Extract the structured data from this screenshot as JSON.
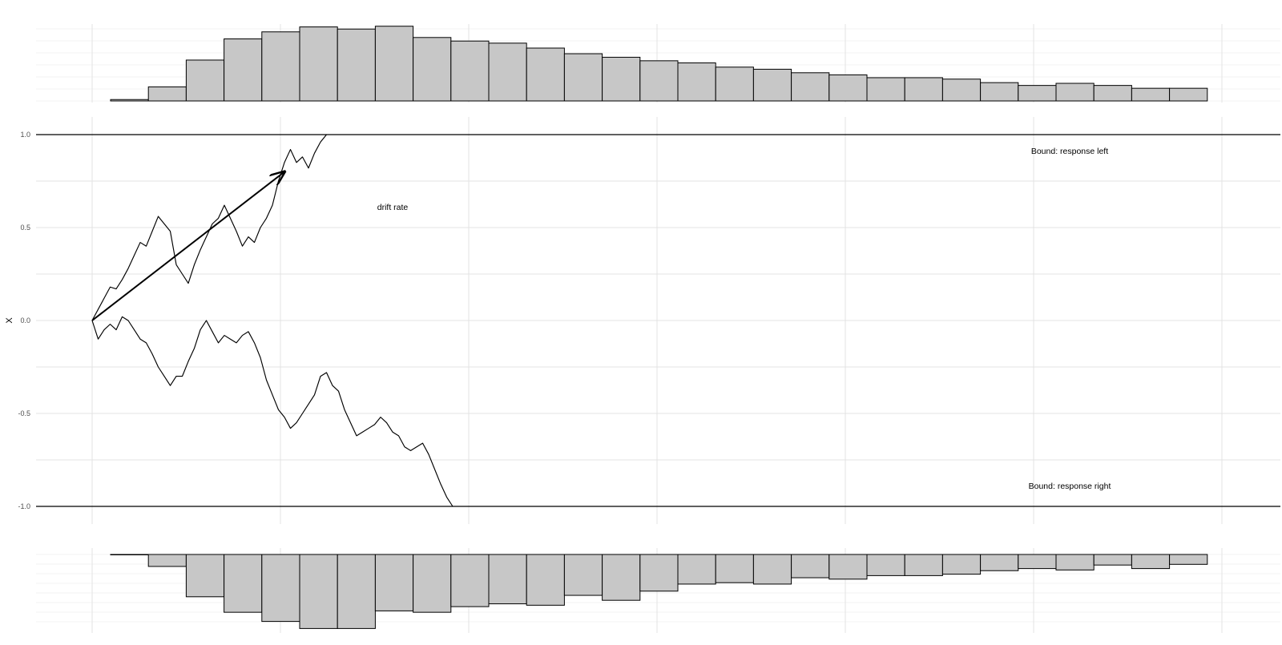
{
  "chart_data": {
    "type": "line",
    "ylabel": "X",
    "ylim": [
      -1.0,
      1.0
    ],
    "yticks": [
      "1.0",
      "0.5",
      "0.0",
      "-0.5",
      "-1.0"
    ],
    "yticks_values": [
      1.0,
      0.5,
      0.0,
      -0.5,
      -1.0
    ],
    "xaxis_labels_shown": false,
    "grid": true,
    "bounds": [
      {
        "value": 1.0,
        "label": "Bound: response left"
      },
      {
        "value": -1.0,
        "label": "Bound: response right"
      }
    ],
    "drift_rate": {
      "label": "drift rate",
      "from": [
        0,
        0.0
      ],
      "to": [
        1.6,
        0.8
      ]
    },
    "series": [
      {
        "kind": "path-upper",
        "points": [
          [
            0,
            0.0
          ],
          [
            0.05,
            0.06
          ],
          [
            0.1,
            0.12
          ],
          [
            0.15,
            0.18
          ],
          [
            0.2,
            0.17
          ],
          [
            0.25,
            0.22
          ],
          [
            0.3,
            0.28
          ],
          [
            0.35,
            0.35
          ],
          [
            0.4,
            0.42
          ],
          [
            0.45,
            0.4
          ],
          [
            0.5,
            0.48
          ],
          [
            0.55,
            0.56
          ],
          [
            0.6,
            0.52
          ],
          [
            0.65,
            0.48
          ],
          [
            0.7,
            0.3
          ],
          [
            0.75,
            0.25
          ],
          [
            0.8,
            0.2
          ],
          [
            0.85,
            0.3
          ],
          [
            0.9,
            0.38
          ],
          [
            0.95,
            0.45
          ],
          [
            1.0,
            0.52
          ],
          [
            1.05,
            0.55
          ],
          [
            1.1,
            0.62
          ],
          [
            1.15,
            0.55
          ],
          [
            1.2,
            0.48
          ],
          [
            1.25,
            0.4
          ],
          [
            1.3,
            0.45
          ],
          [
            1.35,
            0.42
          ],
          [
            1.4,
            0.5
          ],
          [
            1.45,
            0.55
          ],
          [
            1.5,
            0.62
          ],
          [
            1.55,
            0.75
          ],
          [
            1.6,
            0.85
          ],
          [
            1.65,
            0.92
          ],
          [
            1.7,
            0.85
          ],
          [
            1.75,
            0.88
          ],
          [
            1.8,
            0.82
          ],
          [
            1.85,
            0.9
          ],
          [
            1.9,
            0.96
          ],
          [
            1.95,
            1.0
          ]
        ]
      },
      {
        "kind": "path-lower",
        "points": [
          [
            0,
            0.0
          ],
          [
            0.05,
            -0.1
          ],
          [
            0.1,
            -0.05
          ],
          [
            0.15,
            -0.02
          ],
          [
            0.2,
            -0.05
          ],
          [
            0.25,
            0.02
          ],
          [
            0.3,
            0.0
          ],
          [
            0.35,
            -0.05
          ],
          [
            0.4,
            -0.1
          ],
          [
            0.45,
            -0.12
          ],
          [
            0.5,
            -0.18
          ],
          [
            0.55,
            -0.25
          ],
          [
            0.6,
            -0.3
          ],
          [
            0.65,
            -0.35
          ],
          [
            0.7,
            -0.3
          ],
          [
            0.75,
            -0.3
          ],
          [
            0.8,
            -0.22
          ],
          [
            0.85,
            -0.15
          ],
          [
            0.9,
            -0.05
          ],
          [
            0.95,
            0.0
          ],
          [
            1.0,
            -0.06
          ],
          [
            1.05,
            -0.12
          ],
          [
            1.1,
            -0.08
          ],
          [
            1.15,
            -0.1
          ],
          [
            1.2,
            -0.12
          ],
          [
            1.25,
            -0.08
          ],
          [
            1.3,
            -0.06
          ],
          [
            1.35,
            -0.12
          ],
          [
            1.4,
            -0.2
          ],
          [
            1.45,
            -0.32
          ],
          [
            1.5,
            -0.4
          ],
          [
            1.55,
            -0.48
          ],
          [
            1.6,
            -0.52
          ],
          [
            1.65,
            -0.58
          ],
          [
            1.7,
            -0.55
          ],
          [
            1.75,
            -0.5
          ],
          [
            1.8,
            -0.45
          ],
          [
            1.85,
            -0.4
          ],
          [
            1.9,
            -0.3
          ],
          [
            1.95,
            -0.28
          ],
          [
            2.0,
            -0.35
          ],
          [
            2.05,
            -0.38
          ],
          [
            2.1,
            -0.48
          ],
          [
            2.15,
            -0.55
          ],
          [
            2.2,
            -0.62
          ],
          [
            2.25,
            -0.6
          ],
          [
            2.3,
            -0.58
          ],
          [
            2.35,
            -0.56
          ],
          [
            2.4,
            -0.52
          ],
          [
            2.45,
            -0.55
          ],
          [
            2.5,
            -0.6
          ],
          [
            2.55,
            -0.62
          ],
          [
            2.6,
            -0.68
          ],
          [
            2.65,
            -0.7
          ],
          [
            2.7,
            -0.68
          ],
          [
            2.75,
            -0.66
          ],
          [
            2.8,
            -0.72
          ],
          [
            2.85,
            -0.8
          ],
          [
            2.9,
            -0.88
          ],
          [
            2.95,
            -0.95
          ],
          [
            3.0,
            -1.0
          ]
        ]
      }
    ],
    "histograms": [
      {
        "kind": "response-left",
        "values": [
          0.02,
          0.2,
          0.58,
          0.88,
          0.98,
          1.05,
          1.02,
          1.06,
          0.9,
          0.85,
          0.82,
          0.75,
          0.67,
          0.62,
          0.57,
          0.54,
          0.48,
          0.45,
          0.4,
          0.37,
          0.33,
          0.33,
          0.31,
          0.26,
          0.22,
          0.25,
          0.22,
          0.18,
          0.18
        ]
      },
      {
        "kind": "response-right",
        "values": [
          0.0,
          -0.17,
          -0.6,
          -0.82,
          -0.95,
          -1.05,
          -1.05,
          -0.8,
          -0.82,
          -0.74,
          -0.7,
          -0.72,
          -0.58,
          -0.65,
          -0.52,
          -0.42,
          -0.4,
          -0.42,
          -0.33,
          -0.35,
          -0.3,
          -0.3,
          -0.28,
          -0.23,
          -0.2,
          -0.22,
          -0.15,
          -0.2,
          -0.14
        ]
      }
    ]
  }
}
